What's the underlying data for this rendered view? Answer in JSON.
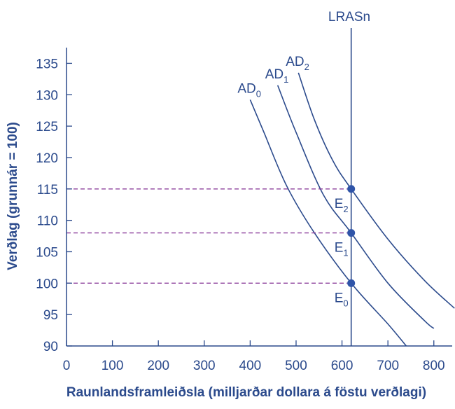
{
  "colors": {
    "axis": "#2b4a8c",
    "curve": "#2b4a8c",
    "point": "#2f54a8",
    "dashed": "#8a3c9a",
    "text": "#2b4a8c"
  },
  "chart_data": {
    "type": "line",
    "xlabel": "Raunlandsframleiðsla (milljarðar dollara á föstu verðlagi)",
    "ylabel": "Verðlag (grunnár = 100)",
    "xlim": [
      0,
      840
    ],
    "ylim": [
      90,
      137.5
    ],
    "x_ticks": [
      0,
      100,
      200,
      300,
      400,
      500,
      600,
      700,
      800
    ],
    "y_ticks": [
      90,
      95,
      100,
      105,
      110,
      115,
      120,
      125,
      130,
      135
    ],
    "grid": false,
    "series": [
      {
        "name": "AD",
        "label_main": "AD",
        "label_sub": "0",
        "points": [
          [
            400,
            129.2
          ],
          [
            430,
            124
          ],
          [
            480,
            115.4
          ],
          [
            540,
            108
          ],
          [
            620,
            100
          ],
          [
            700,
            93.5
          ],
          [
            740,
            90
          ]
        ]
      },
      {
        "name": "AD",
        "label_main": "AD",
        "label_sub": "1",
        "points": [
          [
            460,
            131.5
          ],
          [
            500,
            124
          ],
          [
            560,
            114
          ],
          [
            620,
            108
          ],
          [
            700,
            100
          ],
          [
            780,
            94
          ],
          [
            800,
            92.8
          ]
        ]
      },
      {
        "name": "AD",
        "label_main": "AD",
        "label_sub": "2",
        "points": [
          [
            505,
            133.5
          ],
          [
            540,
            126
          ],
          [
            580,
            119.5
          ],
          [
            620,
            115
          ],
          [
            700,
            107
          ],
          [
            780,
            100.4
          ],
          [
            845,
            96
          ]
        ]
      }
    ],
    "vertical_line": {
      "label": "LRASn",
      "x": 620
    },
    "equilibria": [
      {
        "main": "E",
        "sub": "0",
        "x": 620,
        "y": 100
      },
      {
        "main": "E",
        "sub": "1",
        "x": 620,
        "y": 108
      },
      {
        "main": "E",
        "sub": "2",
        "x": 620,
        "y": 115
      }
    ]
  }
}
